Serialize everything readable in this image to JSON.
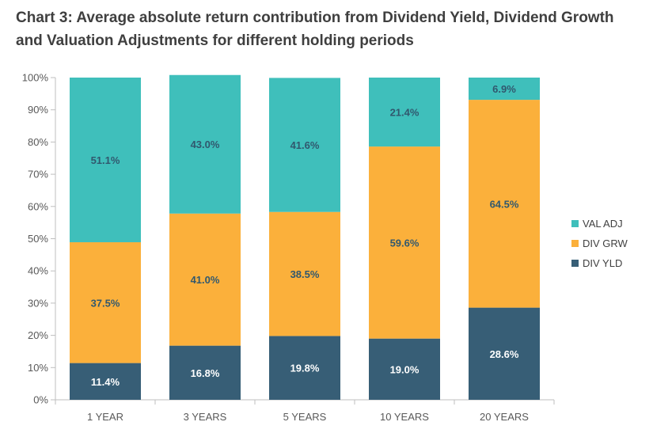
{
  "chart_data": {
    "type": "bar",
    "stacked": true,
    "title": "Chart 3: Average absolute return contribution from Dividend Yield, Dividend Growth and Valuation Adjustments for different holding periods",
    "categories": [
      "1 YEAR",
      "3 YEARS",
      "5 YEARS",
      "10 YEARS",
      "20 YEARS"
    ],
    "series": [
      {
        "name": "DIV YLD",
        "values": [
          11.4,
          16.8,
          19.8,
          19.0,
          28.6
        ],
        "labels": [
          "11.4%",
          "16.8%",
          "19.8%",
          "19.0%",
          "28.6%"
        ],
        "color": "#375e76",
        "label_color": "#ffffff"
      },
      {
        "name": "DIV GRW",
        "values": [
          37.5,
          41.0,
          38.5,
          59.6,
          64.5
        ],
        "labels": [
          "37.5%",
          "41.0%",
          "38.5%",
          "59.6%",
          "64.5%"
        ],
        "color": "#fbb03b",
        "label_color": "#31586e"
      },
      {
        "name": "VAL ADJ",
        "values": [
          51.1,
          43.0,
          41.6,
          21.4,
          6.9
        ],
        "labels": [
          "51.1%",
          "43.0%",
          "41.6%",
          "21.4%",
          "6.9%"
        ],
        "color": "#3fbfbb",
        "label_color": "#31586e"
      }
    ],
    "legend_order": [
      "VAL ADJ",
      "DIV GRW",
      "DIV YLD"
    ],
    "ylim": [
      0,
      100
    ],
    "yticks": [
      "0%",
      "10%",
      "20%",
      "30%",
      "40%",
      "50%",
      "60%",
      "70%",
      "80%",
      "90%",
      "100%"
    ],
    "grid": false,
    "legend_position": "right"
  }
}
